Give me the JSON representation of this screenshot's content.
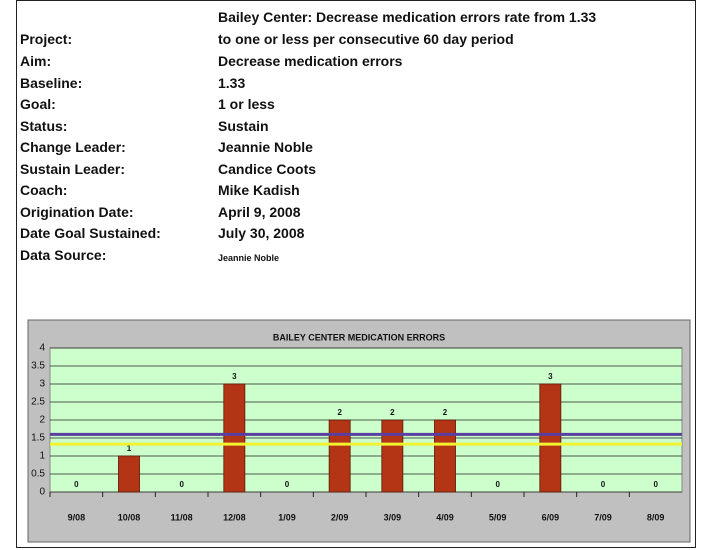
{
  "project": {
    "label": "Project:",
    "value_lines": [
      "Bailey Center: Decrease medication errors rate from 1.33",
      "to one or less per consecutive 60 day period"
    ]
  },
  "fields": [
    {
      "label": "Aim:",
      "value": "Decrease medication errors"
    },
    {
      "label": "Baseline:",
      "value": "1.33"
    },
    {
      "label": "Goal:",
      "value": "1 or less"
    },
    {
      "label": "Status:",
      "value": "Sustain"
    },
    {
      "label": "Change Leader:",
      "value": "Jeannie Noble"
    },
    {
      "label": "Sustain Leader:",
      "value": "Candice Coots"
    },
    {
      "label": "Coach:",
      "value": "Mike Kadish"
    },
    {
      "label": "Origination Date:",
      "value": "April 9, 2008"
    },
    {
      "label": "Date Goal Sustained:",
      "value": "July 30, 2008"
    },
    {
      "label": "Data Source:",
      "value": "Jeannie Noble"
    }
  ],
  "chart_data": {
    "type": "bar",
    "title": "BAILEY CENTER MEDICATION ERRORS",
    "categories": [
      "9/08",
      "10/08",
      "11/08",
      "12/08",
      "1/09",
      "2/09",
      "3/09",
      "4/09",
      "5/09",
      "6/09",
      "7/09",
      "8/09"
    ],
    "values": [
      0,
      1,
      0,
      3,
      0,
      2,
      2,
      2,
      0,
      3,
      0,
      0
    ],
    "color": "#b33515",
    "ylim": [
      0,
      4
    ],
    "yticks": [
      0,
      0.5,
      1,
      1.5,
      2,
      2.5,
      3,
      3.5,
      4
    ],
    "grid": true,
    "reference_lines": [
      {
        "value": 1.6,
        "color": "#5a3fa0"
      },
      {
        "value": 1.33,
        "color": "#f2f233"
      }
    ]
  }
}
